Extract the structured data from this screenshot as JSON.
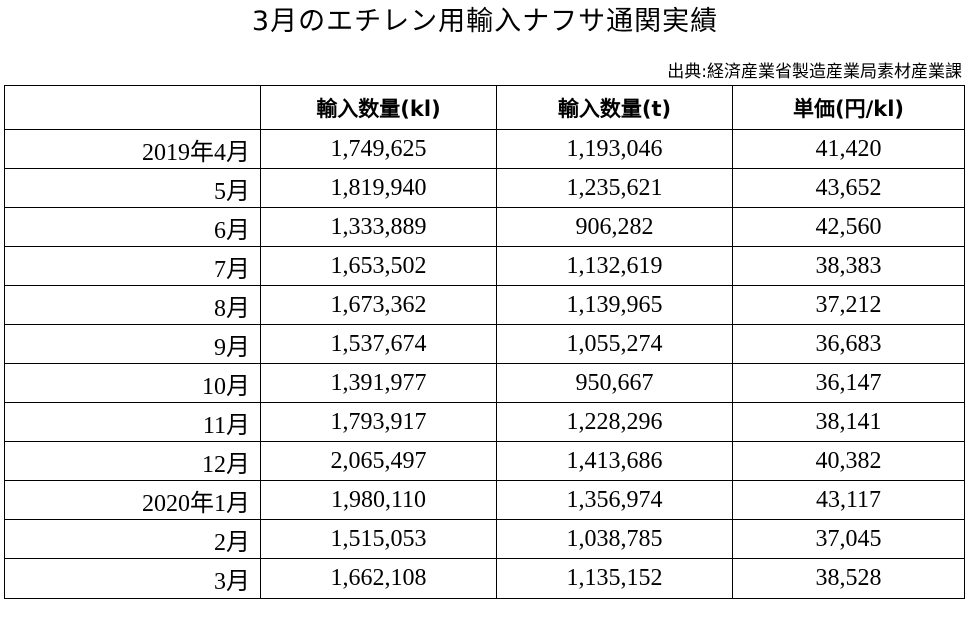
{
  "title": "3月のエチレン用輸入ナフサ通関実績",
  "source": "出典:経済産業省製造産業局素材産業課",
  "table": {
    "headers": [
      "",
      "輸入数量(kl)",
      "輸入数量(t)",
      "単価(円/kl)"
    ],
    "rows": [
      {
        "month": "2019年4月",
        "kl": "1,749,625",
        "t": "1,193,046",
        "price": "41,420"
      },
      {
        "month": "5月",
        "kl": "1,819,940",
        "t": "1,235,621",
        "price": "43,652"
      },
      {
        "month": "6月",
        "kl": "1,333,889",
        "t": "906,282",
        "price": "42,560"
      },
      {
        "month": "7月",
        "kl": "1,653,502",
        "t": "1,132,619",
        "price": "38,383"
      },
      {
        "month": "8月",
        "kl": "1,673,362",
        "t": "1,139,965",
        "price": "37,212"
      },
      {
        "month": "9月",
        "kl": "1,537,674",
        "t": "1,055,274",
        "price": "36,683"
      },
      {
        "month": "10月",
        "kl": "1,391,977",
        "t": "950,667",
        "price": "36,147"
      },
      {
        "month": "11月",
        "kl": "1,793,917",
        "t": "1,228,296",
        "price": "38,141"
      },
      {
        "month": "12月",
        "kl": "2,065,497",
        "t": "1,413,686",
        "price": "40,382"
      },
      {
        "month": "2020年1月",
        "kl": "1,980,110",
        "t": "1,356,974",
        "price": "43,117"
      },
      {
        "month": "2月",
        "kl": "1,515,053",
        "t": "1,038,785",
        "price": "37,045"
      },
      {
        "month": "3月",
        "kl": "1,662,108",
        "t": "1,135,152",
        "price": "38,528"
      }
    ]
  }
}
